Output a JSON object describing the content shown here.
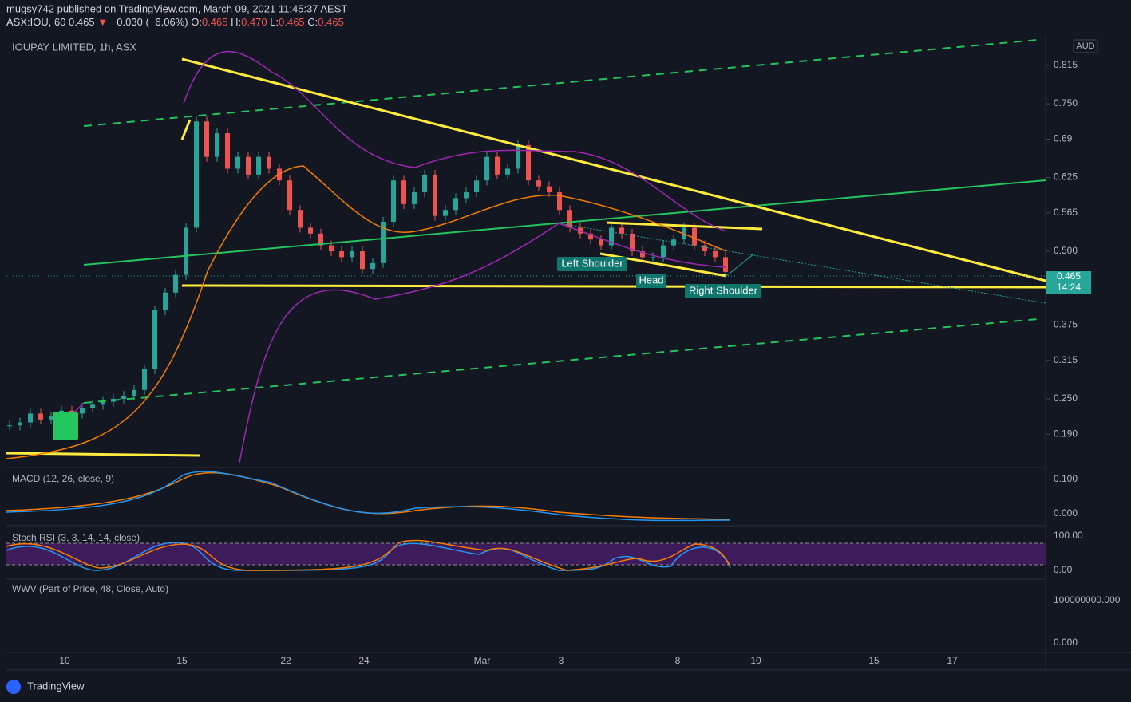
{
  "header": {
    "line1": "mugsy742 published on TradingView.com, March 09, 2021 11:45:37 AEST",
    "symbol": "ASX:IOU, 60",
    "last": "0.465",
    "arrow": "▼",
    "change": "−0.030 (−6.06%)",
    "o_label": "O:",
    "o": "0.465",
    "h_label": "H:",
    "h": "0.470",
    "l_label": "L:",
    "l": "0.465",
    "c_label": "C:",
    "c": "0.465"
  },
  "pane": {
    "legend": "IOUPAY LIMITED, 1h, ASX",
    "currency": "AUD",
    "price_tag": "0.465",
    "countdown": "14:24"
  },
  "chart_data": {
    "type": "candlestick",
    "closes": [
      0.205,
      0.21,
      0.225,
      0.215,
      0.22,
      0.23,
      0.225,
      0.235,
      0.24,
      0.245,
      0.25,
      0.255,
      0.265,
      0.3,
      0.4,
      0.43,
      0.46,
      0.54,
      0.72,
      0.66,
      0.7,
      0.64,
      0.66,
      0.63,
      0.66,
      0.64,
      0.62,
      0.57,
      0.54,
      0.53,
      0.51,
      0.5,
      0.49,
      0.5,
      0.47,
      0.48,
      0.55,
      0.62,
      0.58,
      0.6,
      0.63,
      0.56,
      0.57,
      0.59,
      0.6,
      0.62,
      0.66,
      0.63,
      0.64,
      0.68,
      0.62,
      0.61,
      0.6,
      0.57,
      0.54,
      0.53,
      0.52,
      0.51,
      0.54,
      0.53,
      0.5,
      0.49,
      0.49,
      0.51,
      0.52,
      0.54,
      0.51,
      0.5,
      0.49,
      0.465
    ],
    "ylim": [
      0.135,
      0.865
    ],
    "yticks": [
      0.815,
      {
        "value": 0.75,
        "label": "0.750"
      },
      0.69,
      0.625,
      0.565,
      {
        "value": 0.5,
        "label": "0.500"
      },
      0.375,
      0.315,
      {
        "value": 0.25,
        "label": "0.250"
      },
      {
        "value": 0.19,
        "label": "0.190"
      }
    ],
    "x_labels": [
      "10",
      "15",
      "22",
      "24",
      "Mar",
      "3",
      "8",
      "10",
      "15",
      "17"
    ],
    "up_color": "#26a69a",
    "down_color": "#ef5350"
  },
  "annotations": [
    "Left Shoulder",
    "Head",
    "Right Shoulder"
  ],
  "indicators": [
    {
      "name": "MACD (12, 26, close, 9)",
      "scale": [
        "0.100",
        "0.000"
      ]
    },
    {
      "name": "Stoch RSI (3, 3, 14, 14, close)",
      "scale": [
        "100.00",
        "0.00"
      ]
    },
    {
      "name": "WWV (Part of Price, 48, Close, Auto)",
      "scale": [
        "100000000.000",
        "0.000"
      ]
    }
  ],
  "footer": {
    "brand": "TradingView"
  }
}
